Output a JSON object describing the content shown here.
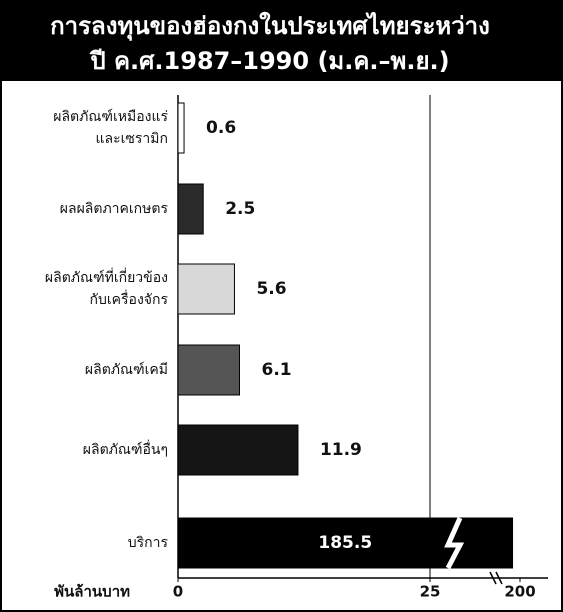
{
  "chart_data": {
    "type": "bar",
    "title": [
      "การลงทุนของฮ่องกงในประเทศไทยระหว่าง",
      "ปี ค.ศ.1987–1990 (ม.ค.–พ.ย.)"
    ],
    "x_label": "พันล้านบาท",
    "categories": [
      [
        "ผลิตภัณฑ์เหมืองแร่",
        "และเซรามิก"
      ],
      [
        "ผลผลิตภาคเกษตร"
      ],
      [
        "ผลิตภัณฑ์ที่เกี่ยวข้อง",
        "กับเครื่องจักร"
      ],
      [
        "ผลิตภัณฑ์เคมี"
      ],
      [
        "ผลิตภัณฑ์อื่นๆ"
      ],
      [
        "บริการ"
      ]
    ],
    "values": [
      0.6,
      2.5,
      5.6,
      6.1,
      11.9,
      185.5
    ],
    "colors": [
      "#ffffff",
      "#2a2a2a",
      "#d8d8d8",
      "#555555",
      "#151515",
      "#000000"
    ],
    "xlim": [
      0,
      200
    ],
    "xticks": [
      0,
      25,
      200
    ],
    "grid": true
  }
}
